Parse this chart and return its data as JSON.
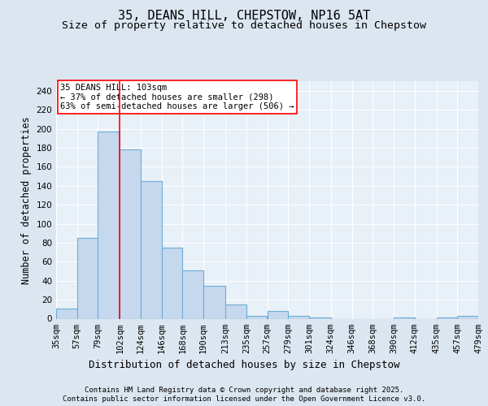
{
  "title": "35, DEANS HILL, CHEPSTOW, NP16 5AT",
  "subtitle": "Size of property relative to detached houses in Chepstow",
  "xlabel": "Distribution of detached houses by size in Chepstow",
  "ylabel": "Number of detached properties",
  "bin_edges": [
    35,
    57,
    79,
    102,
    124,
    146,
    168,
    190,
    213,
    235,
    257,
    279,
    301,
    324,
    346,
    368,
    390,
    412,
    435,
    457,
    479
  ],
  "bar_heights": [
    11,
    85,
    197,
    178,
    145,
    75,
    51,
    35,
    15,
    3,
    8,
    3,
    1,
    0,
    0,
    0,
    1,
    0,
    1,
    3
  ],
  "bar_color": "#c5d8ee",
  "bar_edgecolor": "#6baed6",
  "bar_linewidth": 0.8,
  "vline_x": 102,
  "vline_color": "red",
  "vline_linewidth": 1.2,
  "annotation_title": "35 DEANS HILL: 103sqm",
  "annotation_line1": "← 37% of detached houses are smaller (298)",
  "annotation_line2": "63% of semi-detached houses are larger (506) →",
  "annotation_box_color": "white",
  "annotation_box_edgecolor": "red",
  "ylim": [
    0,
    250
  ],
  "yticks": [
    0,
    20,
    40,
    60,
    80,
    100,
    120,
    140,
    160,
    180,
    200,
    220,
    240
  ],
  "bg_color": "#dce6f0",
  "plot_bg_color": "#e8f0f8",
  "grid_color": "white",
  "title_fontsize": 11,
  "subtitle_fontsize": 9.5,
  "xlabel_fontsize": 9,
  "ylabel_fontsize": 8.5,
  "tick_fontsize": 7.5,
  "footer_line1": "Contains HM Land Registry data © Crown copyright and database right 2025.",
  "footer_line2": "Contains public sector information licensed under the Open Government Licence v3.0."
}
